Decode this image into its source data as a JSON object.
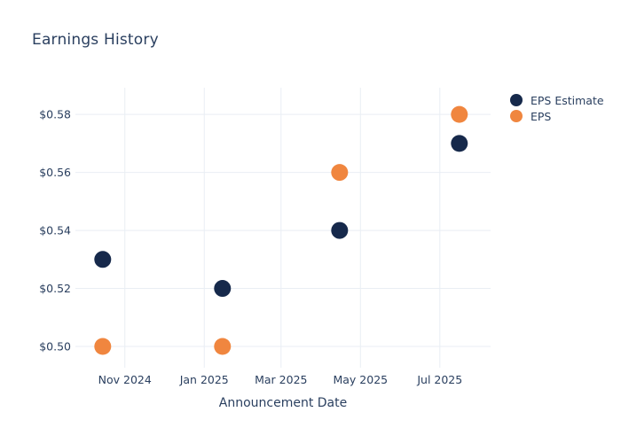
{
  "chart_data": {
    "type": "scatter",
    "title": "Earnings History",
    "xlabel": "Announcement Date",
    "ylabel": "",
    "grid": true,
    "legend_position": "right",
    "font_color": "#2a3f5f",
    "grid_color": "#e9eef4",
    "background_color": "#ffffff",
    "xlim": [
      "2024-09-24",
      "2025-08-09"
    ],
    "ylim": [
      0.4942,
      0.5892
    ],
    "x_ticks": [
      {
        "date": "2024-11-01",
        "label": "Nov 2024"
      },
      {
        "date": "2025-01-01",
        "label": "Jan 2025"
      },
      {
        "date": "2025-03-01",
        "label": "Mar 2025"
      },
      {
        "date": "2025-05-01",
        "label": "May 2025"
      },
      {
        "date": "2025-07-01",
        "label": "Jul 2025"
      }
    ],
    "y_ticks": [
      {
        "value": 0.58,
        "label": "$0.58"
      },
      {
        "value": 0.56,
        "label": "$0.56"
      },
      {
        "value": 0.54,
        "label": "$0.54"
      },
      {
        "value": 0.52,
        "label": "$0.52"
      },
      {
        "value": 0.5,
        "label": "$0.50"
      }
    ],
    "series": [
      {
        "name": "EPS Estimate",
        "color": "#16294b",
        "marker": "circle",
        "points": [
          {
            "x": "2024-10-15",
            "y": 0.53
          },
          {
            "x": "2025-01-15",
            "y": 0.52
          },
          {
            "x": "2025-04-15",
            "y": 0.54
          },
          {
            "x": "2025-07-16",
            "y": 0.57
          }
        ]
      },
      {
        "name": "EPS",
        "color": "#f0863f",
        "marker": "circle",
        "points": [
          {
            "x": "2024-10-15",
            "y": 0.5
          },
          {
            "x": "2025-01-15",
            "y": 0.5
          },
          {
            "x": "2025-04-15",
            "y": 0.56
          },
          {
            "x": "2025-07-16",
            "y": 0.58
          }
        ]
      }
    ]
  }
}
